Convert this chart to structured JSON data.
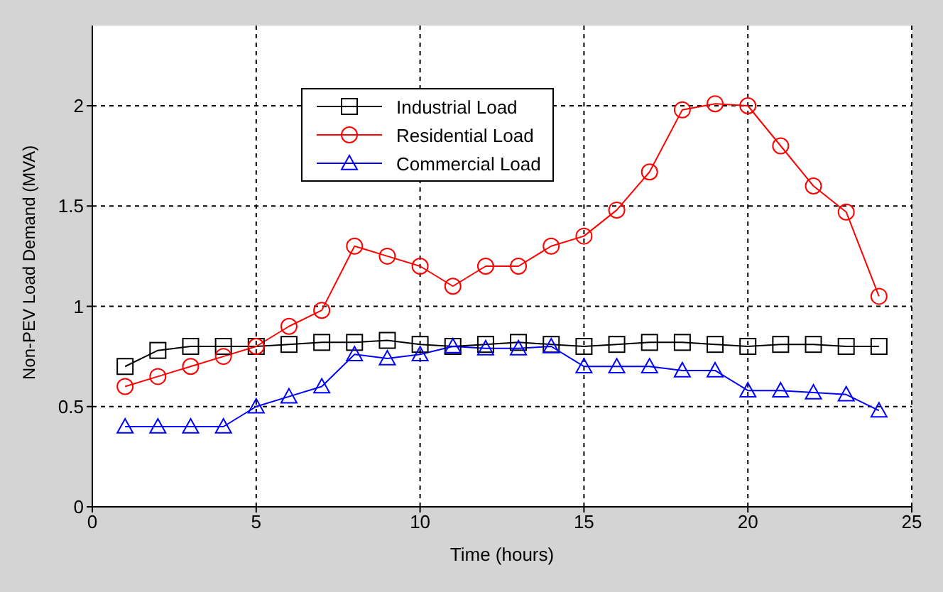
{
  "chart_data": {
    "type": "line",
    "xlabel": "Time (hours)",
    "ylabel": "Non-PEV Load Demand (MVA)",
    "x": [
      1,
      2,
      3,
      4,
      5,
      6,
      7,
      8,
      9,
      10,
      11,
      12,
      13,
      14,
      15,
      16,
      17,
      18,
      19,
      20,
      21,
      22,
      23,
      24
    ],
    "series": [
      {
        "name": "Industrial Load",
        "color": "#000000",
        "marker": "square",
        "values": [
          0.7,
          0.78,
          0.8,
          0.8,
          0.8,
          0.81,
          0.82,
          0.82,
          0.83,
          0.81,
          0.8,
          0.81,
          0.82,
          0.81,
          0.8,
          0.81,
          0.82,
          0.82,
          0.81,
          0.8,
          0.81,
          0.81,
          0.8,
          0.8
        ]
      },
      {
        "name": "Residential Load",
        "color": "#ff0000",
        "marker": "circle",
        "values": [
          0.6,
          0.65,
          0.7,
          0.75,
          0.8,
          0.9,
          0.98,
          1.3,
          1.25,
          1.2,
          1.1,
          1.2,
          1.2,
          1.3,
          1.35,
          1.48,
          1.67,
          1.98,
          2.01,
          2.0,
          1.8,
          1.6,
          1.47,
          1.05
        ]
      },
      {
        "name": "Commercial Load",
        "color": "#0000ff",
        "marker": "triangle",
        "values": [
          0.4,
          0.4,
          0.4,
          0.4,
          0.5,
          0.55,
          0.6,
          0.76,
          0.74,
          0.76,
          0.8,
          0.79,
          0.79,
          0.8,
          0.7,
          0.7,
          0.7,
          0.68,
          0.68,
          0.58,
          0.58,
          0.57,
          0.56,
          0.48
        ]
      }
    ],
    "xlim": [
      0,
      25
    ],
    "xticks": [
      0,
      5,
      10,
      15,
      20,
      25
    ],
    "ylim": [
      0,
      2.4
    ],
    "yticks": [
      0,
      0.5,
      1,
      1.5,
      2
    ],
    "grid": true,
    "legend": "top",
    "line_style": "solid"
  }
}
